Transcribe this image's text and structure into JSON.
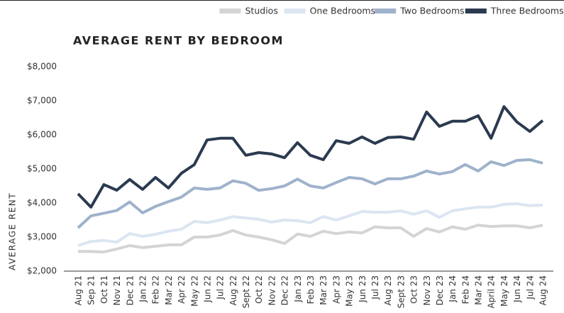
{
  "chart_data": {
    "type": "line",
    "title": "AVERAGE RENT BY BEDROOM",
    "y_label": "AVERAGE RENT",
    "categories": [
      "Aug 21",
      "Sep 21",
      "Oct 21",
      "Nov 21",
      "Dec 21",
      "Jan 22",
      "Feb 22",
      "Mar 22",
      "Apr 22",
      "May 22",
      "Jun 22",
      "Jul 22",
      "Aug 22",
      "Sept 22",
      "Oct 22",
      "Nov 22",
      "Dec 22",
      "Jan 23",
      "Feb 23",
      "Mar 23",
      "Apr 23",
      "May 23",
      "Jun 23",
      "Jul 23",
      "Aug 23",
      "Sept 23",
      "Oct 23",
      "Nov 23",
      "Dec 23",
      "Jan 24",
      "Feb 24",
      "Mar 24",
      "April 24",
      "May 24",
      "Jun 24",
      "Jul 24",
      "Aug 24"
    ],
    "series": [
      {
        "name": "Studios",
        "color": "#d4d4d4",
        "values": [
          2580,
          2580,
          2560,
          2650,
          2750,
          2690,
          2730,
          2770,
          2770,
          3000,
          3000,
          3060,
          3190,
          3060,
          3000,
          2920,
          2810,
          3090,
          3020,
          3170,
          3100,
          3150,
          3120,
          3300,
          3270,
          3270,
          3020,
          3250,
          3150,
          3300,
          3230,
          3350,
          3310,
          3330,
          3330,
          3270,
          3350
        ]
      },
      {
        "name": "One Bedrooms",
        "color": "#dce5f2",
        "values": [
          2750,
          2870,
          2900,
          2850,
          3100,
          3020,
          3080,
          3170,
          3230,
          3460,
          3420,
          3500,
          3600,
          3560,
          3520,
          3440,
          3500,
          3480,
          3420,
          3600,
          3500,
          3620,
          3750,
          3730,
          3730,
          3770,
          3670,
          3770,
          3580,
          3770,
          3830,
          3880,
          3880,
          3960,
          3980,
          3920,
          3940
        ]
      },
      {
        "name": "Two Bedrooms",
        "color": "#9fb2cb",
        "values": [
          3270,
          3620,
          3700,
          3780,
          4030,
          3710,
          3900,
          4040,
          4170,
          4440,
          4400,
          4440,
          4650,
          4580,
          4370,
          4420,
          4500,
          4700,
          4500,
          4440,
          4600,
          4750,
          4710,
          4560,
          4710,
          4710,
          4790,
          4940,
          4850,
          4920,
          5130,
          4940,
          5210,
          5100,
          5250,
          5270,
          5170
        ]
      },
      {
        "name": "Three Bedrooms",
        "color": "#2b3a4f",
        "values": [
          4270,
          3880,
          4540,
          4375,
          4690,
          4400,
          4750,
          4440,
          4870,
          5125,
          5850,
          5900,
          5900,
          5400,
          5480,
          5440,
          5330,
          5770,
          5400,
          5270,
          5830,
          5750,
          5940,
          5750,
          5920,
          5940,
          5870,
          6670,
          6250,
          6400,
          6400,
          6560,
          5900,
          6830,
          6380,
          6100,
          6420
        ]
      }
    ],
    "ylim": [
      2000,
      8000
    ],
    "yticks": [
      {
        "value": 2000,
        "label": "$2,000"
      },
      {
        "value": 3000,
        "label": "$3,000"
      },
      {
        "value": 4000,
        "label": "$4,000"
      },
      {
        "value": 5000,
        "label": "$5,000"
      },
      {
        "value": 6000,
        "label": "$6,000"
      },
      {
        "value": 7000,
        "label": "$7,000"
      },
      {
        "value": 8000,
        "label": "$8,000"
      }
    ],
    "grid": false,
    "legend": "top-right"
  }
}
